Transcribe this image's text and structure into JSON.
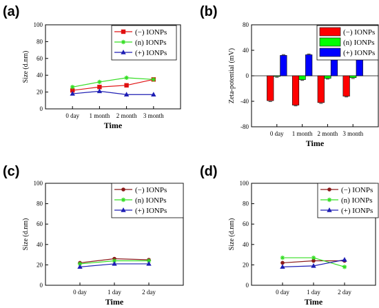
{
  "chart_data": [
    {
      "panel_label": "(a)",
      "type": "line",
      "categories": [
        "0 day",
        "1 month",
        "2 month",
        "3 month"
      ],
      "series": [
        {
          "name": "(−) IONPs",
          "values": [
            22,
            26,
            28,
            35
          ],
          "color": "#e01010",
          "marker": "square"
        },
        {
          "name": "(n) IONPs",
          "values": [
            26,
            32,
            37,
            35
          ],
          "color": "#33dd22",
          "marker": "star"
        },
        {
          "name": "(+) IONPs",
          "values": [
            18,
            21,
            17,
            17
          ],
          "color": "#1e1eb4",
          "marker": "triangle"
        }
      ],
      "xlabel": "Time",
      "ylabel": "Size (d.nm)",
      "ylim": [
        0,
        100
      ],
      "yticks": [
        0,
        20,
        40,
        60,
        80,
        100
      ],
      "legend": "top-right",
      "grid": false
    },
    {
      "panel_label": "(b)",
      "type": "bar",
      "categories": [
        "0 day",
        "1 month",
        "2 month",
        "3 month"
      ],
      "series": [
        {
          "name": "(−) IONPs",
          "values": [
            -39,
            -46,
            -42,
            -32
          ],
          "color": "#ff0000"
        },
        {
          "name": "(n) IONPs",
          "values": [
            -1,
            -6,
            -4,
            -3
          ],
          "color": "#00ff00"
        },
        {
          "name": "(+) IONPs",
          "values": [
            32,
            33,
            34,
            42
          ],
          "color": "#0000ff"
        }
      ],
      "xlabel": "Time",
      "ylabel": "Zeta-potential (mV)",
      "ylim": [
        -80,
        80
      ],
      "yticks": [
        -80,
        -40,
        0,
        40,
        80
      ],
      "legend": "top-right",
      "grid": false
    },
    {
      "panel_label": "(c)",
      "type": "line",
      "categories": [
        "0 day",
        "1 day",
        "2 day"
      ],
      "series": [
        {
          "name": "(−) IONPs",
          "values": [
            22,
            26,
            25
          ],
          "color": "#8b1a1a",
          "marker": "circle"
        },
        {
          "name": "(n) IONPs",
          "values": [
            21,
            24,
            24
          ],
          "color": "#33dd22",
          "marker": "star"
        },
        {
          "name": "(+) IONPs",
          "values": [
            18,
            21,
            21
          ],
          "color": "#1e1eb4",
          "marker": "triangle"
        }
      ],
      "xlabel": "Time",
      "ylabel": "Size (d.nm)",
      "ylim": [
        0,
        100
      ],
      "yticks": [
        0,
        20,
        40,
        60,
        80,
        100
      ],
      "legend": "top-right",
      "grid": false
    },
    {
      "panel_label": "(d)",
      "type": "line",
      "categories": [
        "0 day",
        "1 day",
        "2 day"
      ],
      "series": [
        {
          "name": "(−) IONPs",
          "values": [
            22,
            24,
            24
          ],
          "color": "#8b1a1a",
          "marker": "circle"
        },
        {
          "name": "(n) IONPs",
          "values": [
            27,
            27,
            18
          ],
          "color": "#33dd22",
          "marker": "star"
        },
        {
          "name": "(+) IONPs",
          "values": [
            18,
            19,
            25
          ],
          "color": "#1e1eb4",
          "marker": "triangle"
        }
      ],
      "xlabel": "Time",
      "ylabel": "Size (d.nm)",
      "ylim": [
        0,
        100
      ],
      "yticks": [
        0,
        20,
        40,
        60,
        80,
        100
      ],
      "legend": "top-right",
      "grid": false
    }
  ]
}
